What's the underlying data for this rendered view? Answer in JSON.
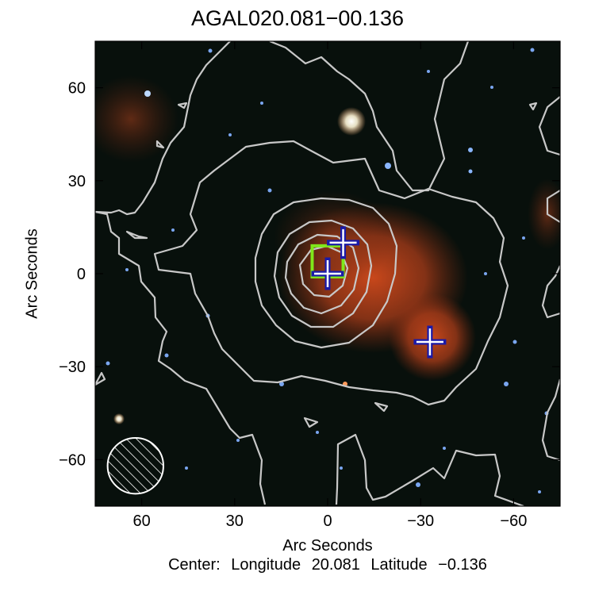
{
  "title": "AGAL020.081−00.136",
  "axes": {
    "ylabel": "Arc Seconds",
    "xlabel": "Arc Seconds",
    "x_ticks": [
      "60",
      "30",
      "0",
      "−30",
      "−60"
    ],
    "x_tick_values": [
      60,
      30,
      0,
      -30,
      -60
    ],
    "y_ticks": [
      "60",
      "30",
      "0",
      "−30",
      "−60"
    ],
    "y_tick_values": [
      60,
      30,
      0,
      -30,
      -60
    ],
    "xlim": [
      75,
      -75
    ],
    "ylim": [
      -75,
      75
    ]
  },
  "footer": {
    "prefix": "Center:",
    "longitude_label": "Longitude",
    "longitude": "20.081",
    "latitude_label": "Latitude",
    "latitude": "−0.136"
  },
  "markers": {
    "crosses": [
      {
        "x": -5,
        "y": 10
      },
      {
        "x": 0,
        "y": 0
      },
      {
        "x": -33,
        "y": -22
      }
    ],
    "square": {
      "x": 0,
      "y": 4,
      "size": 10
    },
    "beam": {
      "x": 62,
      "y": -62,
      "radius": 9
    }
  },
  "colors": {
    "background": "#08100c",
    "contour": "#c8c8c8",
    "cross": "#ffffff",
    "cross_outline": "#1a1aa8",
    "square": "#7fe81a",
    "nebula": "#c8461a"
  }
}
